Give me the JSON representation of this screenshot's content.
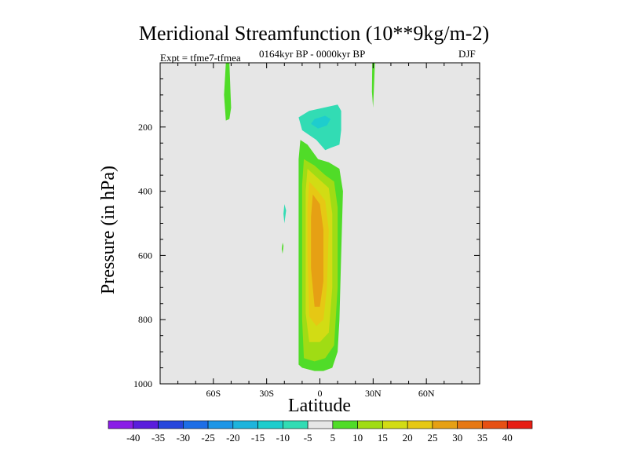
{
  "figure": {
    "title": "Meridional Streamfunction (10**9kg/m-2)",
    "subtitle": "0164kyr BP - 0000kyr BP",
    "experiment": "Expt = tfme7-tfmea",
    "season": "DJF"
  },
  "colors": {
    "background_panel": "#e6e6e6",
    "missing": "#ffffff"
  },
  "chart_data": {
    "type": "heatmap",
    "title": "Meridional Streamfunction (10**9kg/m-2)",
    "subtitle": "0164kyr BP - 0000kyr BP",
    "xlabel": "Latitude",
    "ylabel": "Pressure (in hPa)",
    "xlim": [
      -90,
      90
    ],
    "ylim": [
      1000,
      0
    ],
    "x_ticks": [
      {
        "value": -60,
        "label": "60S"
      },
      {
        "value": -30,
        "label": "30S"
      },
      {
        "value": 0,
        "label": "0"
      },
      {
        "value": 30,
        "label": "30N"
      },
      {
        "value": 60,
        "label": "60N"
      }
    ],
    "y_ticks": [
      {
        "value": 200,
        "label": "200"
      },
      {
        "value": 400,
        "label": "400"
      },
      {
        "value": 600,
        "label": "600"
      },
      {
        "value": 800,
        "label": "800"
      },
      {
        "value": 1000,
        "label": "1000"
      }
    ],
    "colorbar": {
      "labels": [
        "-40",
        "-35",
        "-30",
        "-25",
        "-20",
        "-15",
        "-10",
        "-5",
        "5",
        "10",
        "15",
        "20",
        "25",
        "30",
        "35",
        "40"
      ],
      "colors": [
        "#8a1ee6",
        "#5a1edc",
        "#2846dc",
        "#1e6ee6",
        "#1e96e6",
        "#1eb4dc",
        "#1ecdcd",
        "#32dcb4",
        "#e6e6e6",
        "#50dc28",
        "#a0dc14",
        "#d2dc14",
        "#e6c814",
        "#e6a014",
        "#e67814",
        "#e65014",
        "#e61e14"
      ]
    },
    "features": [
      {
        "name": "positive cell",
        "lat_range": [
          -12,
          12
        ],
        "pressure_range": [
          240,
          960
        ],
        "max_value": 25
      },
      {
        "name": "negative cell",
        "lat_range": [
          -10,
          12
        ],
        "pressure_range": [
          130,
          270
        ],
        "min_value": -10
      },
      {
        "name": "southern positive band",
        "lat_range": [
          -52,
          -48
        ],
        "pressure_range": [
          0,
          180
        ],
        "max_value": 5
      },
      {
        "name": "northern positive band",
        "lat_range": [
          28,
          31
        ],
        "pressure_range": [
          0,
          140
        ],
        "max_value": 5
      }
    ]
  }
}
